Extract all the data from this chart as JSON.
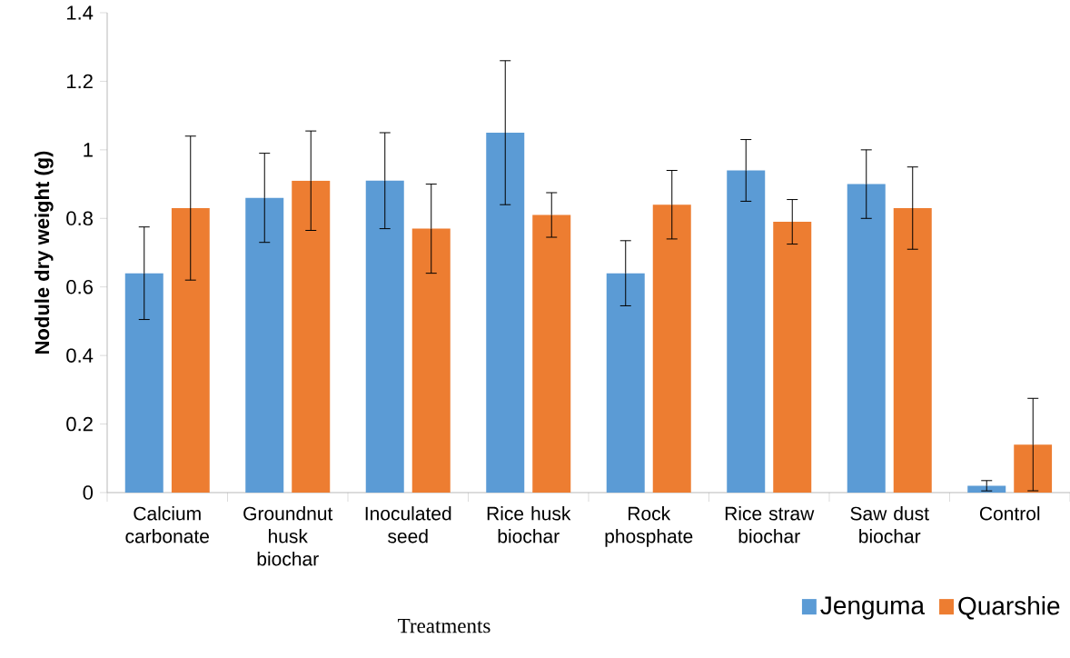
{
  "chart_data": {
    "type": "bar",
    "xlabel": "Treatments",
    "ylabel": "Nodule dry weight (g)",
    "categories": [
      "Calcium carbonate",
      "Groundnut husk biochar",
      "Inoculated seed",
      "Rice husk biochar",
      "Rock phosphate",
      "Rice straw biochar",
      "Saw dust biochar",
      "Control"
    ],
    "series": [
      {
        "name": "Jenguma",
        "color": "#5b9bd5",
        "values": [
          0.64,
          0.86,
          0.91,
          1.05,
          0.64,
          0.94,
          0.9,
          0.02
        ],
        "errors": [
          0.135,
          0.13,
          0.14,
          0.21,
          0.095,
          0.09,
          0.1,
          0.015
        ]
      },
      {
        "name": "Quarshie",
        "color": "#ed7d31",
        "values": [
          0.83,
          0.91,
          0.77,
          0.81,
          0.84,
          0.79,
          0.83,
          0.14
        ],
        "errors": [
          0.21,
          0.145,
          0.13,
          0.065,
          0.1,
          0.065,
          0.12,
          0.135
        ]
      }
    ],
    "ylim": [
      0,
      1.4
    ],
    "yticks": [
      0,
      0.2,
      0.4,
      0.6,
      0.8,
      1,
      1.2,
      1.4
    ],
    "grid": false,
    "legend": "bottom right"
  }
}
